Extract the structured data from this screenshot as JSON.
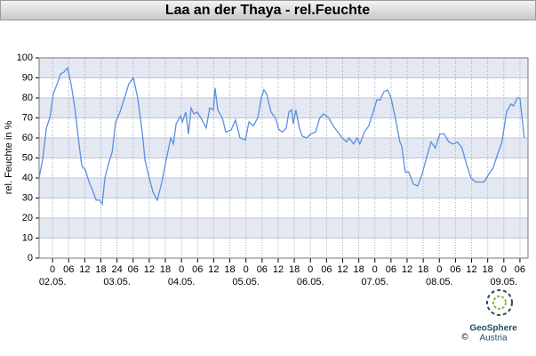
{
  "chart_data": {
    "type": "line",
    "title": "Laa an der Thaya - rel.Feuchte",
    "ylabel": "rel. Feuchte in %",
    "xlim": [
      -5,
      177
    ],
    "ylim": [
      0,
      100
    ],
    "yticks": [
      0,
      10,
      20,
      30,
      40,
      50,
      60,
      70,
      80,
      90,
      100
    ],
    "xticks": [
      0,
      {
        "value": 6,
        "label": "06"
      },
      12,
      18,
      24,
      {
        "value": 30,
        "label": "06"
      },
      {
        "value": 36,
        "label": "12"
      },
      {
        "value": 42,
        "label": "18"
      },
      {
        "value": 48,
        "label": "0"
      },
      {
        "value": 54,
        "label": "06"
      },
      {
        "value": 60,
        "label": "12"
      },
      {
        "value": 66,
        "label": "18"
      },
      {
        "value": 72,
        "label": "0"
      },
      {
        "value": 78,
        "label": "06"
      },
      {
        "value": 84,
        "label": "12"
      },
      {
        "value": 90,
        "label": "18"
      },
      {
        "value": 96,
        "label": "0"
      },
      {
        "value": 102,
        "label": "06"
      },
      {
        "value": 108,
        "label": "12"
      },
      {
        "value": 114,
        "label": "18"
      },
      {
        "value": 120,
        "label": "0"
      },
      {
        "value": 126,
        "label": "06"
      },
      {
        "value": 132,
        "label": "12"
      },
      {
        "value": 138,
        "label": "18"
      },
      {
        "value": 144,
        "label": "0"
      },
      {
        "value": 150,
        "label": "06"
      },
      {
        "value": 156,
        "label": "12"
      },
      {
        "value": 162,
        "label": "18"
      },
      {
        "value": 168,
        "label": "0"
      },
      {
        "value": 174,
        "label": "06"
      }
    ],
    "date_labels": [
      {
        "value": 0,
        "label": "02.05."
      },
      {
        "value": 24,
        "label": "03.05."
      },
      {
        "value": 48,
        "label": "04.05."
      },
      {
        "value": 72,
        "label": "05.05."
      },
      {
        "value": 96,
        "label": "06.05."
      },
      {
        "value": 120,
        "label": "07.05."
      },
      {
        "value": 144,
        "label": "08.05."
      },
      {
        "value": 168,
        "label": "09.05."
      }
    ],
    "grid": true,
    "band_color": "#e3e8f2",
    "color": "#5b8fe0",
    "series": [
      {
        "x": [
          -5,
          -3.6,
          -2.3,
          -1,
          0.3,
          1.7,
          3,
          4.3,
          5.6,
          7,
          8.3,
          9.6,
          10.9,
          12.2,
          13.6,
          14.9,
          16.2,
          17.5,
          18.5,
          19.5,
          20.8,
          22.2,
          23.5,
          25.1,
          26.8,
          28.4,
          30.1,
          31.7,
          33.4,
          34.4,
          36,
          37.4,
          39,
          40.7,
          42,
          44,
          45,
          46,
          47.6,
          48.3,
          49.6,
          50.6,
          51.6,
          52.6,
          53.9,
          55.2,
          57.2,
          58.5,
          59.9,
          60.5,
          61.5,
          63.2,
          64.5,
          66.5,
          68.1,
          69.8,
          71.8,
          73.1,
          74.7,
          76.4,
          77.7,
          78.7,
          79.7,
          81.3,
          83,
          84.3,
          85.6,
          87,
          88,
          89,
          89.6,
          90.6,
          91.9,
          92.9,
          94.6,
          96.2,
          97.9,
          99.5,
          100.9,
          102.8,
          104.5,
          106.2,
          107.8,
          109.5,
          110.4,
          112.1,
          113.4,
          114.4,
          116.1,
          117.7,
          119.4,
          120.7,
          122,
          123.3,
          124.7,
          126,
          127.6,
          129.3,
          130,
          131.3,
          132.6,
          134.3,
          135.9,
          137.6,
          139.2,
          140.9,
          142.5,
          144.2,
          145.8,
          147.5,
          149.1,
          150.8,
          152.4,
          154.1,
          155.8,
          157.4,
          159.1,
          160.7,
          162.4,
          164,
          165.7,
          167.3,
          169,
          170.6,
          171.6,
          173,
          174,
          175.6
        ],
        "values": [
          40,
          50,
          65,
          70,
          82,
          87,
          92,
          93,
          95,
          86,
          75,
          60,
          46,
          44,
          38,
          34,
          29,
          29,
          27,
          40,
          47,
          53,
          68,
          73,
          80,
          87,
          90,
          80,
          63,
          49,
          40,
          33,
          29,
          38,
          47,
          60,
          57,
          67,
          71,
          68,
          73,
          62,
          75,
          72,
          73,
          70,
          65,
          75,
          74,
          85,
          74,
          70,
          63,
          64,
          69,
          60,
          59,
          68,
          66,
          70,
          80,
          84,
          82,
          73,
          70,
          64,
          63,
          65,
          73,
          74,
          67,
          74,
          65,
          61,
          60,
          62,
          63,
          70,
          72,
          70,
          66,
          63,
          60,
          58,
          60,
          57,
          60,
          57,
          63,
          66,
          73,
          79,
          79,
          83,
          84,
          80,
          70,
          58,
          56,
          43,
          43,
          37,
          36,
          42,
          50,
          58,
          55,
          62,
          62,
          58,
          57,
          58,
          55,
          47,
          40,
          38,
          38,
          38,
          42,
          45,
          52,
          58,
          73,
          77,
          76,
          80,
          80,
          60
        ]
      }
    ]
  },
  "logo": {
    "name": "GeoSphere",
    "sub": "Austria",
    "copyright": "©"
  }
}
